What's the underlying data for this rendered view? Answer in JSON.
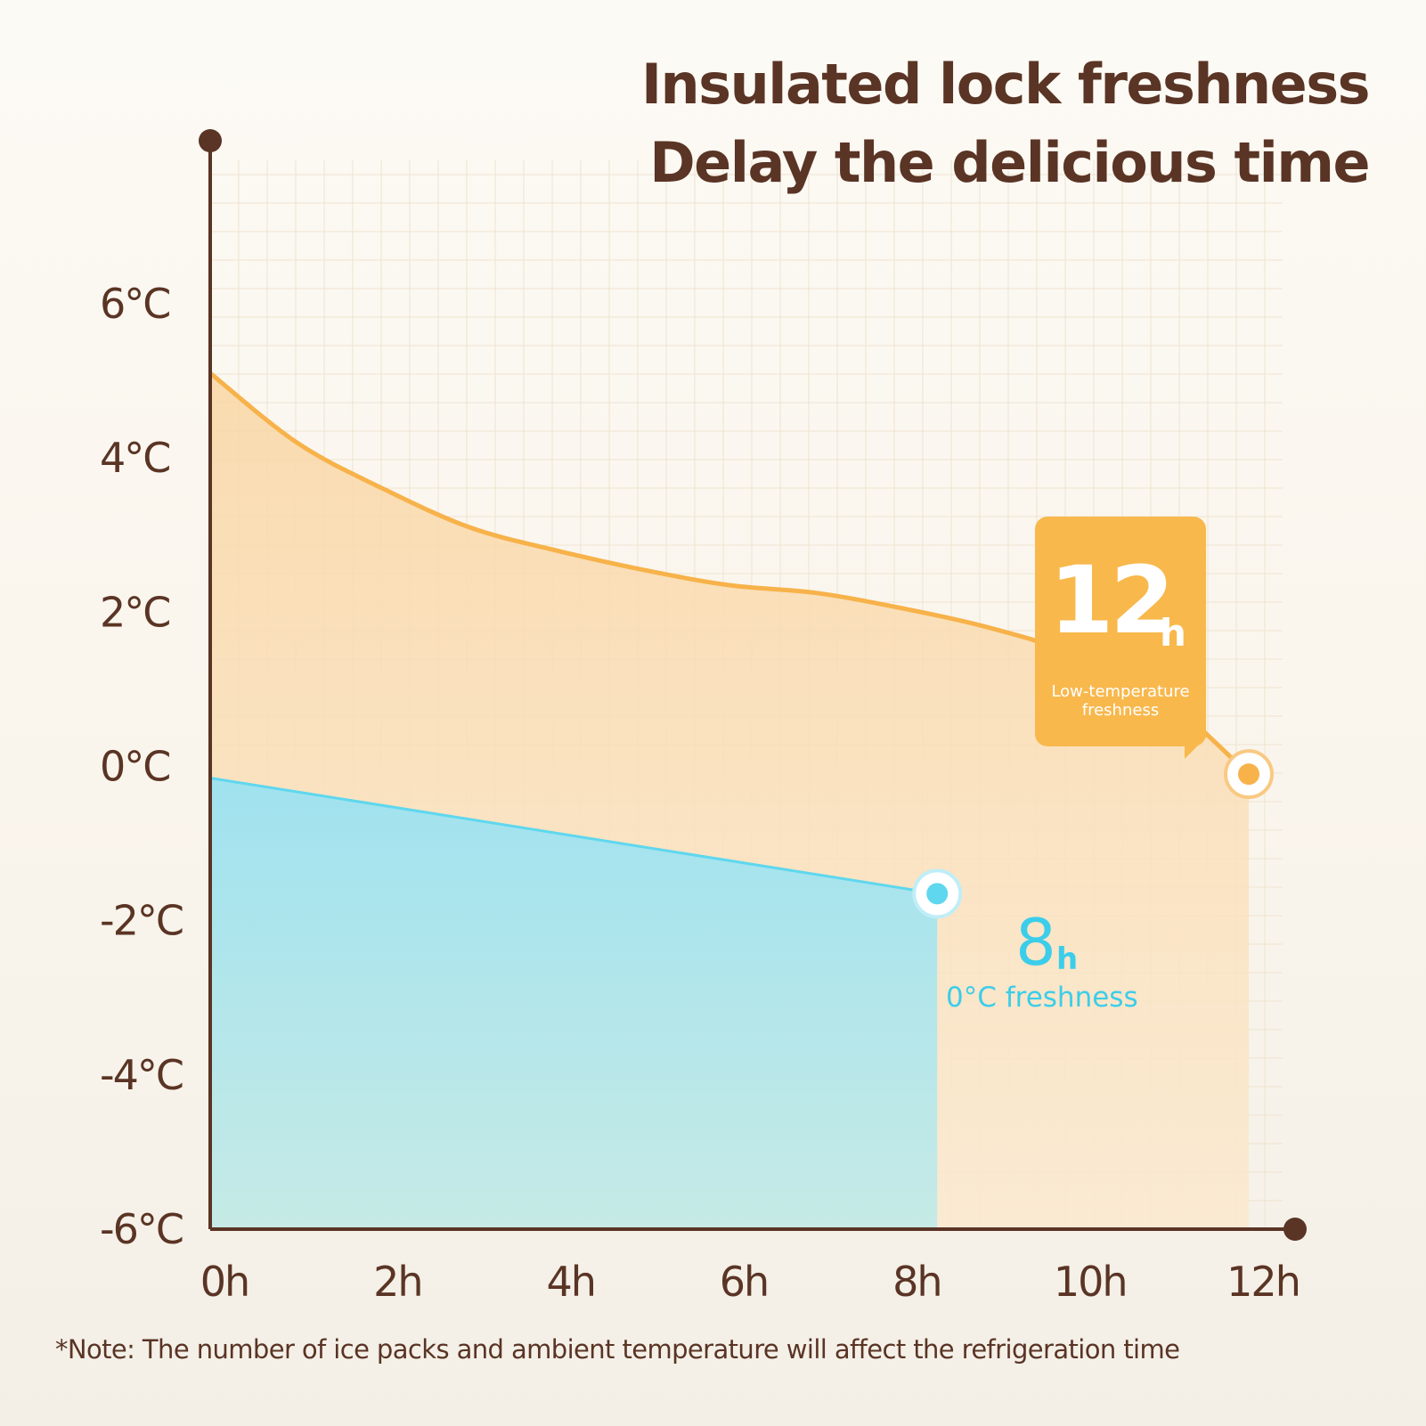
{
  "colors": {
    "axis": "#5a3424",
    "orange_line": "#f7b24a",
    "orange_fill": "#f9dcae",
    "cyan_line": "#5fd7ee",
    "cyan_fill": "#a6e4ee",
    "grid": "#efe3cf",
    "text": "#5a3424"
  },
  "header": {
    "line1": "Insulated lock freshness",
    "line2": "Delay the delicious time"
  },
  "note": "*Note: The number of ice packs and ambient temperature will affect the refrigeration time",
  "chart_data": {
    "type": "area",
    "title": "",
    "xlabel": "",
    "ylabel": "",
    "x_ticks": [
      "0h",
      "2h",
      "4h",
      "6h",
      "8h",
      "10h",
      "12h"
    ],
    "x_tick_values": [
      0,
      2,
      4,
      6,
      8,
      10,
      12
    ],
    "y_ticks": [
      "6°C",
      "4°C",
      "2°C",
      "0°C",
      "-2°C",
      "-4°C",
      "-6°C"
    ],
    "y_tick_values": [
      6,
      4,
      2,
      0,
      -2,
      -4,
      -6
    ],
    "xlim": [
      0,
      12
    ],
    "ylim": [
      -6,
      6
    ],
    "grid": true,
    "series": [
      {
        "points": [
          {
            "x": 0,
            "y": 5.1
          },
          {
            "x": 1,
            "y": 4.2
          },
          {
            "x": 2,
            "y": 3.6
          },
          {
            "x": 3,
            "y": 3.1
          },
          {
            "x": 4,
            "y": 2.8
          },
          {
            "x": 5,
            "y": 2.55
          },
          {
            "x": 6,
            "y": 2.35
          },
          {
            "x": 7,
            "y": 2.25
          },
          {
            "x": 8,
            "y": 2.05
          },
          {
            "x": 9,
            "y": 1.8
          },
          {
            "x": 10,
            "y": 1.45
          },
          {
            "x": 11,
            "y": 0.9
          },
          {
            "x": 12,
            "y": -0.1
          }
        ]
      },
      {
        "points": [
          {
            "x": 0,
            "y": -0.15
          },
          {
            "x": 8.4,
            "y": -1.65
          }
        ]
      }
    ],
    "annotations": [
      {
        "value": "12",
        "unit": "h",
        "caption": "Low-temperature freshness"
      },
      {
        "value": "8",
        "unit": "h",
        "caption": "0°C freshness"
      }
    ]
  }
}
